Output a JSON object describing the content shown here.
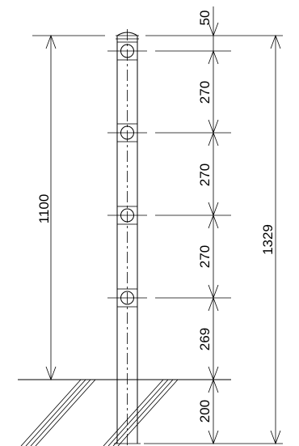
{
  "drawing": {
    "overall_height_label": "1329",
    "handrail_height_label": "1100",
    "segments": [
      {
        "label": "50",
        "value": 50
      },
      {
        "label": "270",
        "value": 270
      },
      {
        "label": "270",
        "value": 270
      },
      {
        "label": "270",
        "value": 270
      },
      {
        "label": "269",
        "value": 269
      },
      {
        "label": "200",
        "value": 200
      }
    ]
  }
}
